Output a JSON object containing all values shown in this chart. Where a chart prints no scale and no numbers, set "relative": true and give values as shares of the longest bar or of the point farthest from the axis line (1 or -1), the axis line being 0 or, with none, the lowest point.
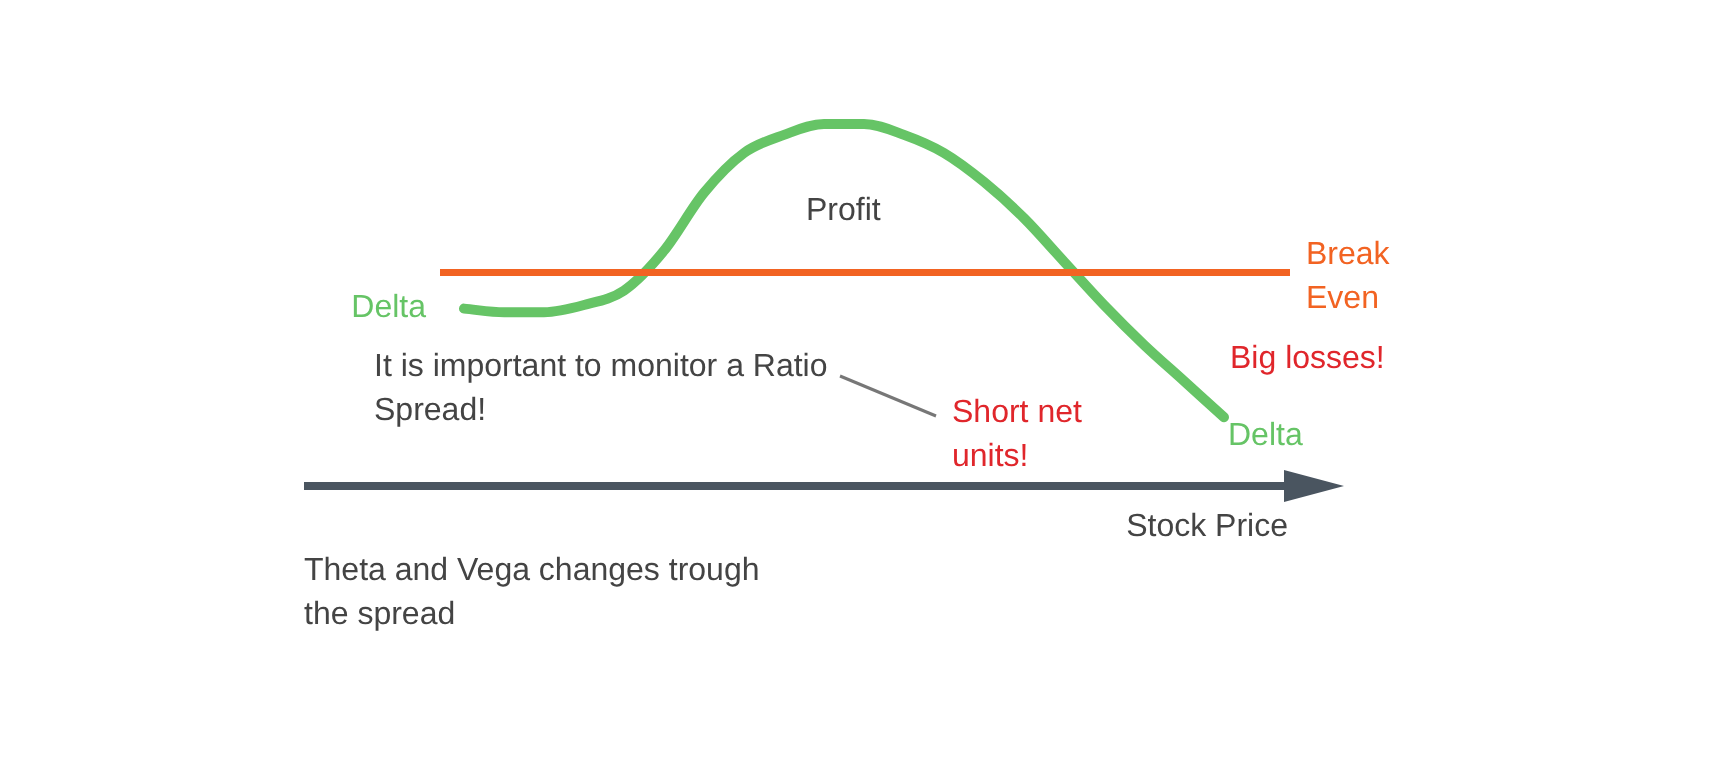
{
  "chart_data": {
    "type": "line",
    "relative": true,
    "xlabel": "Stock Price",
    "categories": [
      null,
      null,
      null,
      null,
      null,
      null,
      null,
      null,
      null,
      null,
      null,
      null,
      null,
      null,
      null,
      null,
      null,
      null,
      null,
      null,
      null,
      null,
      null,
      null,
      null,
      null,
      null
    ],
    "series": [
      {
        "name": "Delta",
        "color": "#66c466",
        "values": [
          null,
          null,
          null,
          null,
          0.49,
          0.48,
          0.48,
          0.5,
          0.54,
          0.65,
          0.81,
          0.92,
          0.97,
          1,
          1,
          0.97,
          0.92,
          0.84,
          0.74,
          0.62,
          0.5,
          0.39,
          0.29,
          0.19,
          null,
          null,
          null
        ]
      }
    ],
    "ref_lines": [
      {
        "axis": "y",
        "value": 0.59,
        "label": "Break Even",
        "color": "#f26322"
      }
    ],
    "annotations": [
      "Profit",
      "Big losses!",
      "It is important to monitor a Ratio Spread!",
      "Short net units!",
      "Theta and Vega changes trough the spread"
    ],
    "legend": false,
    "tick_labels": false,
    "marker": "none",
    "line_style": "solid"
  }
}
